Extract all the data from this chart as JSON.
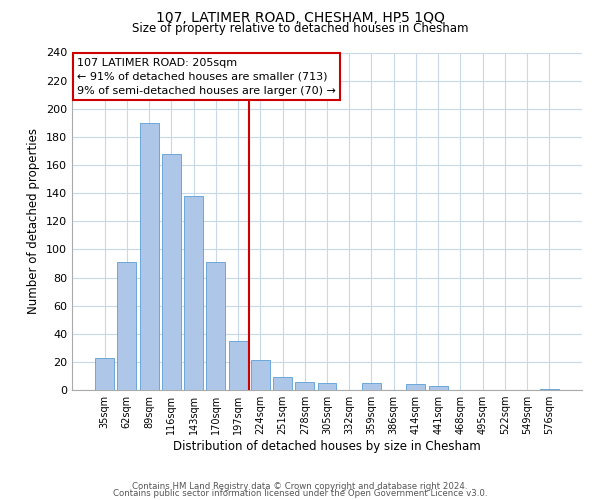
{
  "title": "107, LATIMER ROAD, CHESHAM, HP5 1QQ",
  "subtitle": "Size of property relative to detached houses in Chesham",
  "xlabel": "Distribution of detached houses by size in Chesham",
  "ylabel": "Number of detached properties",
  "bin_labels": [
    "35sqm",
    "62sqm",
    "89sqm",
    "116sqm",
    "143sqm",
    "170sqm",
    "197sqm",
    "224sqm",
    "251sqm",
    "278sqm",
    "305sqm",
    "332sqm",
    "359sqm",
    "386sqm",
    "414sqm",
    "441sqm",
    "468sqm",
    "495sqm",
    "522sqm",
    "549sqm",
    "576sqm"
  ],
  "bar_heights": [
    23,
    91,
    190,
    168,
    138,
    91,
    35,
    21,
    9,
    6,
    5,
    0,
    5,
    0,
    4,
    3,
    0,
    0,
    0,
    0,
    1
  ],
  "bar_color": "#aec6e8",
  "bar_edge_color": "#5a9fd4",
  "vline_x": 6.5,
  "vline_color": "#cc0000",
  "annotation_title": "107 LATIMER ROAD: 205sqm",
  "annotation_line1": "← 91% of detached houses are smaller (713)",
  "annotation_line2": "9% of semi-detached houses are larger (70) →",
  "ylim": [
    0,
    240
  ],
  "yticks": [
    0,
    20,
    40,
    60,
    80,
    100,
    120,
    140,
    160,
    180,
    200,
    220,
    240
  ],
  "footer_line1": "Contains HM Land Registry data © Crown copyright and database right 2024.",
  "footer_line2": "Contains public sector information licensed under the Open Government Licence v3.0.",
  "background_color": "#ffffff",
  "grid_color": "#c8d8e8"
}
